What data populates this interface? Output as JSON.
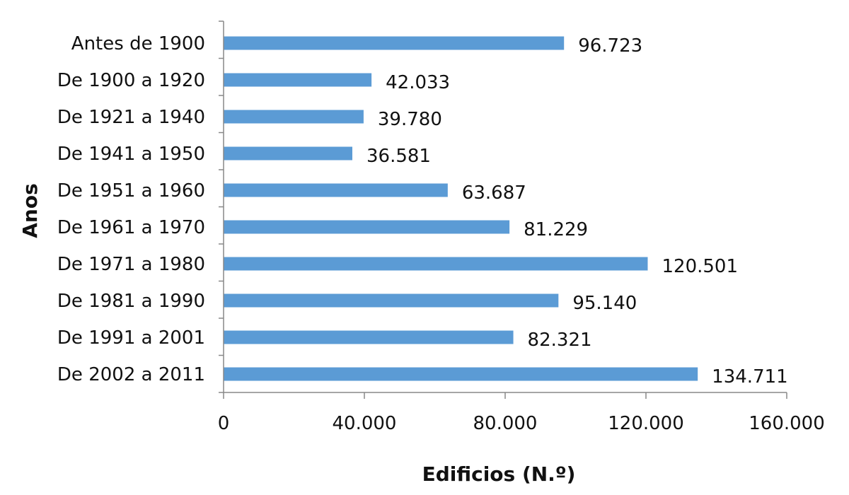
{
  "chart_data": {
    "type": "bar",
    "orientation": "horizontal",
    "title": "",
    "xlabel": "Edificios (N.º)",
    "ylabel": "Anos",
    "categories": [
      "Antes de 1900",
      "De 1900 a 1920",
      "De 1921 a 1940",
      "De 1941 a 1950",
      "De 1951 a 1960",
      "De 1961 a 1970",
      "De 1971 a 1980",
      "De 1981 a 1990",
      "De 1991 a 2001",
      "De 2002 a 2011"
    ],
    "values": [
      96723,
      42033,
      39780,
      36581,
      63687,
      81229,
      120501,
      95140,
      82321,
      134711
    ],
    "value_labels": [
      "96.723",
      "42.033",
      "39.780",
      "36.581",
      "63.687",
      "81.229",
      "120.501",
      "95.140",
      "82.321",
      "134.711"
    ],
    "xlim": [
      0,
      160000
    ],
    "x_ticks": [
      0,
      40000,
      80000,
      120000,
      160000
    ],
    "x_tick_labels": [
      "0",
      "40.000",
      "80.000",
      "120.000",
      "160.000"
    ],
    "grid": false,
    "legend": "none",
    "bar_color": "#5B9BD5"
  }
}
